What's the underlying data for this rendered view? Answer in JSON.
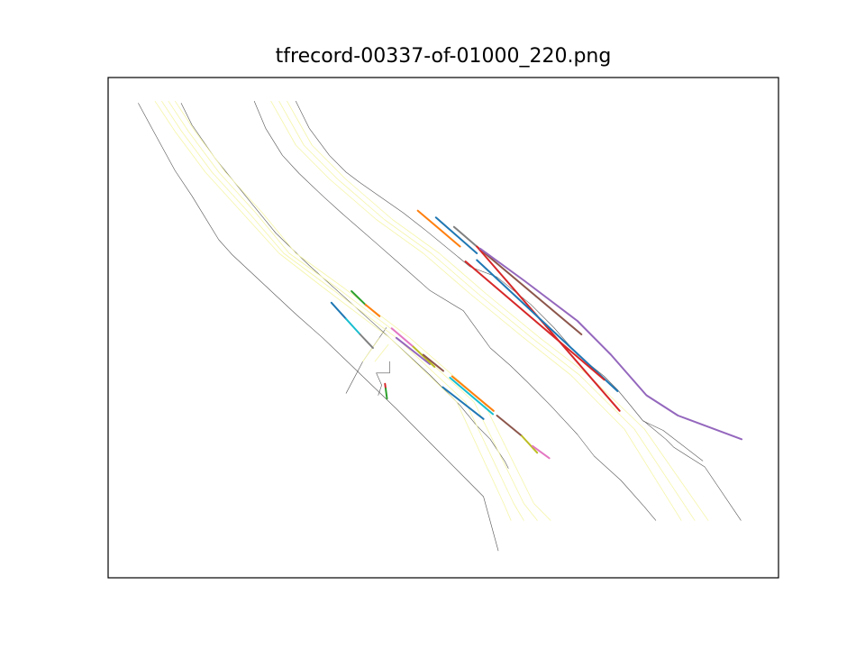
{
  "figure": {
    "title": "tfrecord-00337-of-01000_220.png"
  },
  "chart_data": {
    "type": "line",
    "title": "tfrecord-00337-of-01000_220.png",
    "xlabel": "",
    "ylabel": "",
    "ticks_visible": false,
    "grid": false,
    "legend": "none",
    "xlim": [
      0,
      1000
    ],
    "ylim": [
      0,
      740
    ],
    "road_boundaries": {
      "color": "#555555",
      "lines": [
        [
          [
            45,
            702
          ],
          [
            68,
            660
          ],
          [
            90,
            620
          ],
          [
            100,
            602
          ],
          [
            125,
            565
          ],
          [
            165,
            500
          ],
          [
            185,
            478
          ],
          [
            280,
            390
          ],
          [
            320,
            355
          ],
          [
            430,
            250
          ],
          [
            500,
            180
          ],
          [
            530,
            150
          ],
          [
            560,
            120
          ],
          [
            582,
            40
          ]
        ],
        [
          [
            109,
            702
          ],
          [
            125,
            670
          ],
          [
            160,
            620
          ],
          [
            205,
            565
          ],
          [
            250,
            510
          ],
          [
            300,
            462
          ],
          [
            420,
            355
          ],
          [
            480,
            300
          ],
          [
            500,
            280
          ],
          [
            525,
            255
          ],
          [
            550,
            225
          ],
          [
            570,
            205
          ],
          [
            592,
            172
          ],
          [
            597,
            162
          ]
        ],
        [
          [
            218,
            705
          ],
          [
            235,
            665
          ],
          [
            260,
            625
          ],
          [
            285,
            598
          ],
          [
            320,
            565
          ],
          [
            350,
            538
          ],
          [
            400,
            495
          ],
          [
            440,
            460
          ],
          [
            480,
            425
          ],
          [
            530,
            395
          ],
          [
            570,
            340
          ],
          [
            600,
            314
          ],
          [
            625,
            290
          ],
          [
            660,
            255
          ],
          [
            700,
            212
          ],
          [
            725,
            180
          ],
          [
            765,
            144
          ],
          [
            800,
            105
          ],
          [
            817,
            85
          ]
        ],
        [
          [
            280,
            705
          ],
          [
            300,
            665
          ],
          [
            330,
            625
          ],
          [
            355,
            600
          ],
          [
            375,
            585
          ],
          [
            440,
            540
          ],
          [
            475,
            513
          ],
          [
            540,
            460
          ],
          [
            580,
            445
          ],
          [
            630,
            405
          ],
          [
            665,
            370
          ],
          [
            700,
            330
          ],
          [
            740,
            298
          ],
          [
            760,
            278
          ],
          [
            775,
            260
          ],
          [
            798,
            232
          ],
          [
            828,
            218
          ],
          [
            887,
            173
          ]
        ],
        [
          [
            355,
            273
          ],
          [
            380,
            320
          ],
          [
            415,
            370
          ]
        ],
        [
          [
            403,
            270
          ],
          [
            408,
            285
          ],
          [
            400,
            303
          ],
          [
            420,
            303
          ],
          [
            420,
            320
          ]
        ],
        [
          [
            799,
            232
          ],
          [
            832,
            205
          ],
          [
            844,
            193
          ],
          [
            890,
            164
          ],
          [
            944,
            85
          ]
        ]
      ]
    },
    "lane_centerlines": {
      "color": "#f5f5a8",
      "lines": [
        [
          [
            70,
            705
          ],
          [
            100,
            660
          ],
          [
            145,
            600
          ],
          [
            200,
            540
          ],
          [
            255,
            480
          ],
          [
            320,
            430
          ],
          [
            420,
            355
          ],
          [
            520,
            260
          ],
          [
            590,
            110
          ],
          [
            601,
            85
          ]
        ],
        [
          [
            80,
            705
          ],
          [
            110,
            660
          ],
          [
            155,
            600
          ],
          [
            210,
            540
          ],
          [
            262,
            480
          ],
          [
            330,
            430
          ],
          [
            430,
            355
          ],
          [
            533,
            260
          ],
          [
            605,
            110
          ],
          [
            620,
            85
          ]
        ],
        [
          [
            90,
            705
          ],
          [
            120,
            660
          ],
          [
            165,
            600
          ],
          [
            220,
            540
          ],
          [
            270,
            480
          ],
          [
            340,
            430
          ],
          [
            440,
            355
          ],
          [
            546,
            260
          ],
          [
            620,
            110
          ],
          [
            640,
            85
          ]
        ],
        [
          [
            100,
            705
          ],
          [
            130,
            660
          ],
          [
            175,
            600
          ],
          [
            230,
            540
          ],
          [
            280,
            480
          ],
          [
            350,
            430
          ],
          [
            450,
            355
          ],
          [
            560,
            260
          ],
          [
            635,
            110
          ],
          [
            660,
            85
          ]
        ],
        [
          [
            243,
            705
          ],
          [
            280,
            640
          ],
          [
            330,
            590
          ],
          [
            400,
            530
          ],
          [
            470,
            480
          ],
          [
            540,
            420
          ],
          [
            620,
            355
          ],
          [
            690,
            300
          ],
          [
            770,
            220
          ],
          [
            855,
            85
          ]
        ],
        [
          [
            255,
            705
          ],
          [
            292,
            640
          ],
          [
            342,
            590
          ],
          [
            412,
            530
          ],
          [
            482,
            480
          ],
          [
            552,
            420
          ],
          [
            632,
            355
          ],
          [
            703,
            300
          ],
          [
            785,
            220
          ],
          [
            875,
            85
          ]
        ],
        [
          [
            267,
            705
          ],
          [
            304,
            640
          ],
          [
            354,
            590
          ],
          [
            424,
            530
          ],
          [
            494,
            480
          ],
          [
            564,
            420
          ],
          [
            644,
            355
          ],
          [
            716,
            300
          ],
          [
            800,
            220
          ],
          [
            895,
            85
          ]
        ],
        [
          [
            380,
            320
          ],
          [
            405,
            355
          ]
        ],
        [
          [
            398,
            320
          ],
          [
            418,
            345
          ]
        ]
      ]
    },
    "series": [
      {
        "color": "#1f77b4",
        "points": [
          [
            333,
            407
          ],
          [
            355,
            383
          ]
        ]
      },
      {
        "color": "#2ca02c",
        "points": [
          [
            363,
            424
          ],
          [
            385,
            403
          ]
        ]
      },
      {
        "color": "#ff7f0e",
        "points": [
          [
            384,
            404
          ],
          [
            405,
            387
          ]
        ]
      },
      {
        "color": "#17becf",
        "points": [
          [
            355,
            383
          ],
          [
            376,
            360
          ]
        ]
      },
      {
        "color": "#7f7f7f",
        "points": [
          [
            376,
            360
          ],
          [
            395,
            340
          ]
        ]
      },
      {
        "color": "#e377c2",
        "points": [
          [
            423,
            369
          ],
          [
            455,
            342
          ]
        ]
      },
      {
        "color": "#9467bd",
        "points": [
          [
            430,
            355
          ],
          [
            480,
            316
          ]
        ]
      },
      {
        "color": "#bcbd22",
        "points": [
          [
            455,
            342
          ],
          [
            487,
            312
          ]
        ]
      },
      {
        "color": "#8c564b",
        "points": [
          [
            470,
            330
          ],
          [
            500,
            306
          ]
        ]
      },
      {
        "color": "#ff7f0e",
        "points": [
          [
            513,
            298
          ],
          [
            575,
            247
          ]
        ]
      },
      {
        "color": "#17becf",
        "points": [
          [
            510,
            296
          ],
          [
            574,
            242
          ]
        ]
      },
      {
        "color": "#1f77b4",
        "points": [
          [
            499,
            282
          ],
          [
            560,
            235
          ]
        ]
      },
      {
        "color": "#8c564b",
        "points": [
          [
            580,
            240
          ],
          [
            617,
            210
          ]
        ]
      },
      {
        "color": "#bcbd22",
        "points": [
          [
            617,
            210
          ],
          [
            640,
            185
          ]
        ]
      },
      {
        "color": "#e377c2",
        "points": [
          [
            633,
            195
          ],
          [
            658,
            177
          ]
        ]
      },
      {
        "color": "#d62728",
        "points": [
          [
            413,
            287
          ],
          [
            414,
            280
          ]
        ]
      },
      {
        "color": "#2ca02c",
        "points": [
          [
            414,
            280
          ],
          [
            416,
            265
          ]
        ]
      },
      {
        "color": "#ff7f0e",
        "points": [
          [
            462,
            543
          ],
          [
            525,
            490
          ]
        ]
      },
      {
        "color": "#1f77b4",
        "points": [
          [
            489,
            533
          ],
          [
            550,
            480
          ]
        ]
      },
      {
        "color": "#7f7f7f",
        "points": [
          [
            516,
            519
          ],
          [
            550,
            490
          ]
        ]
      },
      {
        "color": "#8c564b",
        "points": [
          [
            550,
            490
          ],
          [
            706,
            360
          ]
        ]
      },
      {
        "color": "#d62728",
        "points": [
          [
            550,
            490
          ],
          [
            763,
            247
          ]
        ]
      },
      {
        "color": "#1f77b4",
        "points": [
          [
            550,
            470
          ],
          [
            760,
            276
          ]
        ]
      },
      {
        "color": "#d62728",
        "points": [
          [
            533,
            468
          ],
          [
            740,
            293
          ]
        ]
      },
      {
        "color": "#9467bd",
        "points": [
          [
            555,
            487
          ],
          [
            620,
            440
          ],
          [
            700,
            380
          ],
          [
            750,
            330
          ],
          [
            803,
            270
          ],
          [
            850,
            240
          ],
          [
            945,
            205
          ]
        ]
      }
    ]
  }
}
